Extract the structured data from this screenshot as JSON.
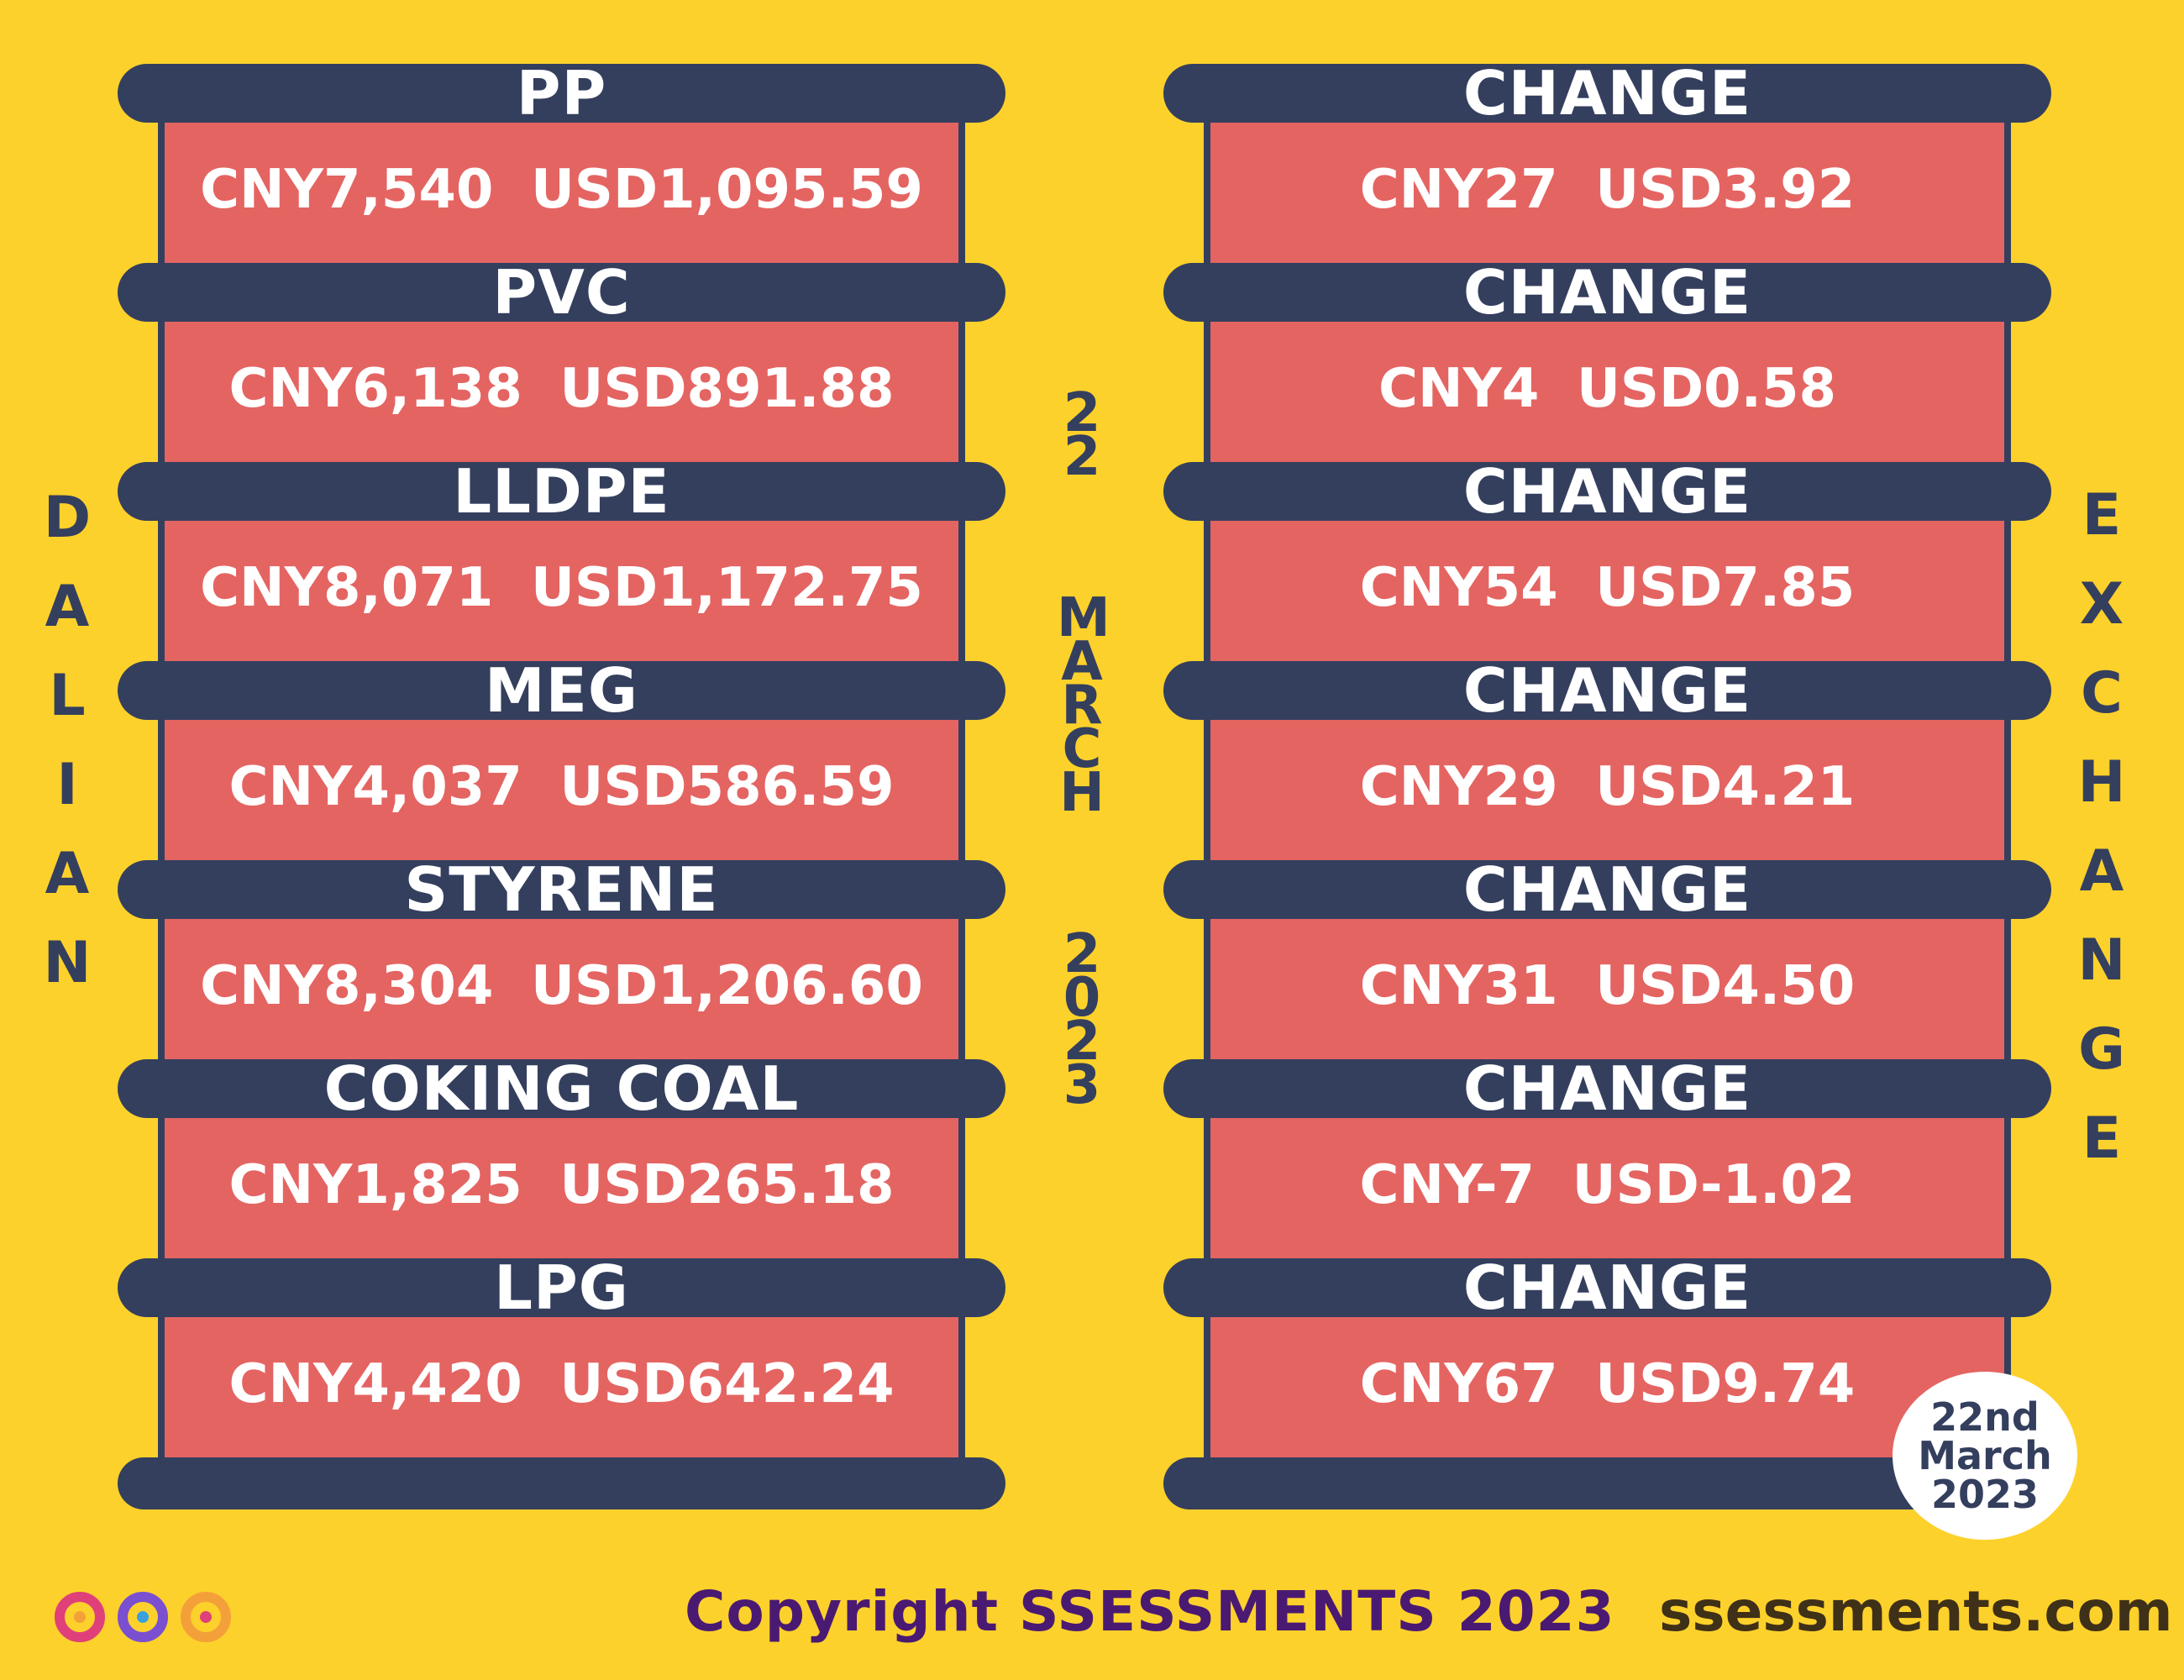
{
  "vertical_left": [
    "D",
    "A",
    "L",
    "I",
    "A",
    "N"
  ],
  "vertical_right": [
    "E",
    "X",
    "C",
    "H",
    "A",
    "N",
    "G",
    "E"
  ],
  "vertical_middle": [
    "2",
    "2",
    "",
    "M",
    "A",
    "R",
    "C",
    "H",
    "",
    "2",
    "0",
    "2",
    "3"
  ],
  "commodities": [
    {
      "name": "PP",
      "price": "CNY7,540  USD1,095.59",
      "change_label": "CHANGE",
      "change": "CNY27  USD3.92"
    },
    {
      "name": "PVC",
      "price": "CNY6,138  USD891.88",
      "change_label": "CHANGE",
      "change": "CNY4  USD0.58"
    },
    {
      "name": "LLDPE",
      "price": "CNY8,071  USD1,172.75",
      "change_label": "CHANGE",
      "change": "CNY54  USD7.85"
    },
    {
      "name": "MEG",
      "price": "CNY4,037  USD586.59",
      "change_label": "CHANGE",
      "change": "CNY29  USD4.21"
    },
    {
      "name": "STYRENE",
      "price": "CNY8,304  USD1,206.60",
      "change_label": "CHANGE",
      "change": "CNY31  USD4.50"
    },
    {
      "name": "COKING COAL",
      "price": "CNY1,825  USD265.18",
      "change_label": "CHANGE",
      "change": "CNY-7  USD-1.02"
    },
    {
      "name": "LPG",
      "price": "CNY4,420  USD642.24",
      "change_label": "CHANGE",
      "change": "CNY67  USD9.74"
    }
  ],
  "date_badge": [
    "22nd",
    "March",
    "2023"
  ],
  "footer": {
    "copyright": "Copyright SSESSMENTS 2023",
    "site": "ssessments.com"
  },
  "colors": {
    "background": "#fdd12b",
    "band": "#343f5e",
    "panel": "#e46462",
    "text": "#ffffff"
  }
}
